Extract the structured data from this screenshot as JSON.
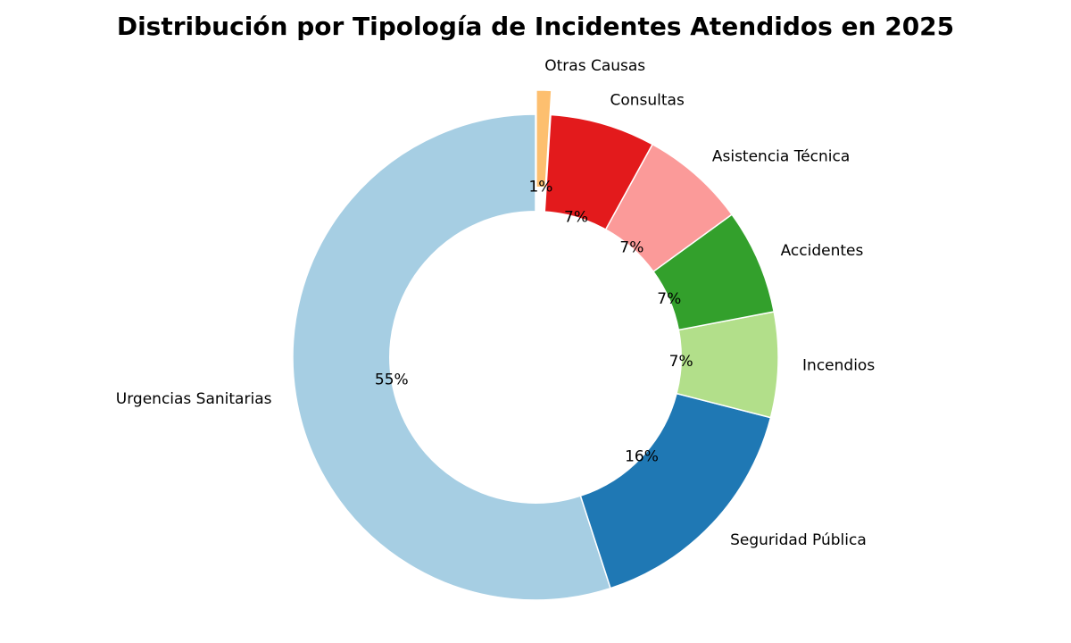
{
  "chart_data": {
    "type": "donut",
    "title": "Distribución por Tipología de Incidentes Atendidos en 2025",
    "categories": [
      "Urgencias Sanitarias",
      "Seguridad Pública",
      "Incendios",
      "Accidentes",
      "Asistencia Técnica",
      "Consultas",
      "Otras Causas"
    ],
    "values": [
      55,
      16,
      7,
      7,
      7,
      7,
      1
    ],
    "value_labels": [
      "55%",
      "16%",
      "7%",
      "7%",
      "7%",
      "7%",
      "1%"
    ],
    "colors": [
      "#a6cee3",
      "#1f78b4",
      "#b2df8a",
      "#33a02c",
      "#fb9a99",
      "#e31a1c",
      "#fdbf6f"
    ],
    "explode": [
      0,
      0,
      0,
      0,
      0,
      0,
      0.1
    ]
  }
}
